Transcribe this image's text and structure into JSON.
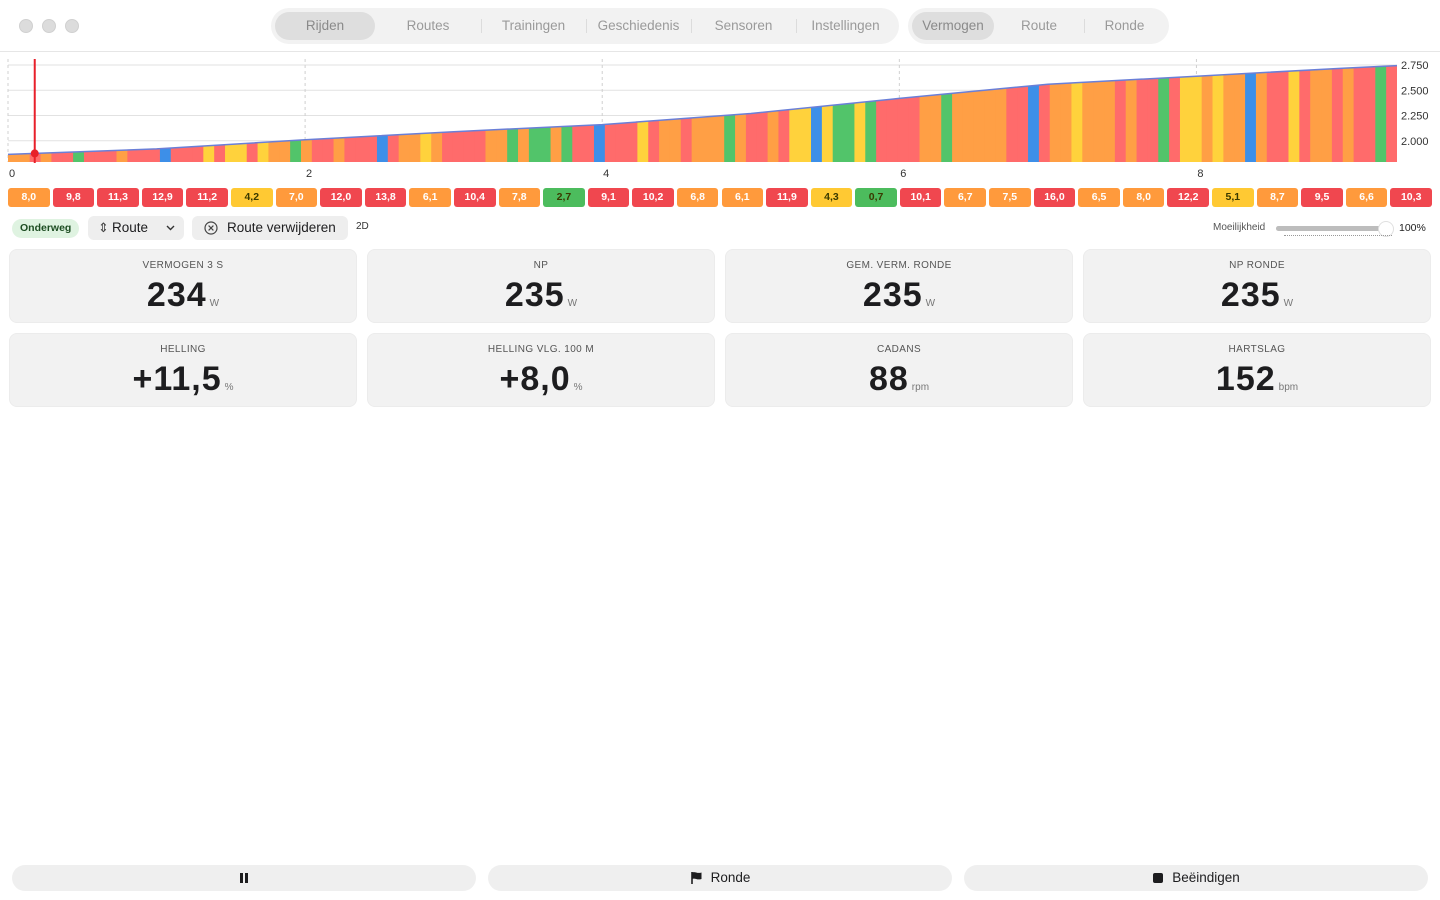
{
  "tabs_main": [
    {
      "label": "Rijden",
      "selected": true
    },
    {
      "label": "Routes",
      "selected": false
    },
    {
      "label": "Trainingen",
      "selected": false
    },
    {
      "label": "Geschiedenis",
      "selected": false
    },
    {
      "label": "Sensoren",
      "selected": false
    },
    {
      "label": "Instellingen",
      "selected": false
    }
  ],
  "tabs_view": [
    {
      "label": "Vermogen",
      "selected": true
    },
    {
      "label": "Route",
      "selected": false
    },
    {
      "label": "Ronde",
      "selected": false
    }
  ],
  "chart_data": {
    "type": "area",
    "x_ticks": [
      "0",
      "2",
      "4",
      "6",
      "8"
    ],
    "y_ticks": [
      "2.000",
      "2.250",
      "2.500",
      "2.750"
    ],
    "ylim": [
      1790,
      2810
    ],
    "xlim": [
      0,
      9.35
    ],
    "current_position_x": 0.18,
    "elevation_x": [
      0,
      1,
      2,
      3,
      4,
      5,
      6,
      7,
      8,
      9,
      9.35
    ],
    "elevation_y": [
      1865,
      1920,
      2010,
      2090,
      2160,
      2270,
      2420,
      2560,
      2640,
      2720,
      2745
    ],
    "zone_colors": {
      "red": "#ff6b6b",
      "orange": "#ff9f45",
      "yellow": "#ffd23c",
      "green": "#52c46a",
      "blue": "#3d8fe8"
    }
  },
  "slope_chips": [
    {
      "label": "8,0",
      "color": "#ff9a3c"
    },
    {
      "label": "9,8",
      "color": "#f0474f"
    },
    {
      "label": "11,3",
      "color": "#f0474f"
    },
    {
      "label": "12,9",
      "color": "#f0474f"
    },
    {
      "label": "11,2",
      "color": "#f0474f"
    },
    {
      "label": "4,2",
      "color": "#ffc933"
    },
    {
      "label": "7,0",
      "color": "#ff9a3c"
    },
    {
      "label": "12,0",
      "color": "#f0474f"
    },
    {
      "label": "13,8",
      "color": "#f0474f"
    },
    {
      "label": "6,1",
      "color": "#ff9a3c"
    },
    {
      "label": "10,4",
      "color": "#f0474f"
    },
    {
      "label": "7,8",
      "color": "#ff9a3c"
    },
    {
      "label": "2,7",
      "color": "#4cbc5d"
    },
    {
      "label": "9,1",
      "color": "#f0474f"
    },
    {
      "label": "10,2",
      "color": "#f0474f"
    },
    {
      "label": "6,8",
      "color": "#ff9a3c"
    },
    {
      "label": "6,1",
      "color": "#ff9a3c"
    },
    {
      "label": "11,9",
      "color": "#f0474f"
    },
    {
      "label": "4,3",
      "color": "#ffc933"
    },
    {
      "label": "0,7",
      "color": "#4cbc5d"
    },
    {
      "label": "10,1",
      "color": "#f0474f"
    },
    {
      "label": "6,7",
      "color": "#ff9a3c"
    },
    {
      "label": "7,5",
      "color": "#ff9a3c"
    },
    {
      "label": "16,0",
      "color": "#f0474f"
    },
    {
      "label": "6,5",
      "color": "#ff9a3c"
    },
    {
      "label": "8,0",
      "color": "#ff9a3c"
    },
    {
      "label": "12,2",
      "color": "#f0474f"
    },
    {
      "label": "5,1",
      "color": "#ffc933"
    },
    {
      "label": "8,7",
      "color": "#ff9a3c"
    },
    {
      "label": "9,5",
      "color": "#f0474f"
    },
    {
      "label": "6,6",
      "color": "#ff9a3c"
    },
    {
      "label": "10,3",
      "color": "#f0474f"
    }
  ],
  "toolbar": {
    "status_badge": "Onderweg",
    "route_selector": "Route",
    "remove_route": "Route verwijderen",
    "mode_2d": "2D",
    "difficulty_label": "Moeilijkheid",
    "difficulty_value": "100%",
    "difficulty_fraction": 1.0
  },
  "metrics": [
    {
      "label": "VERMOGEN 3 S",
      "value": "234",
      "unit": "W"
    },
    {
      "label": "NP",
      "value": "235",
      "unit": "W"
    },
    {
      "label": "GEM. VERM. RONDE",
      "value": "235",
      "unit": "W"
    },
    {
      "label": "NP RONDE",
      "value": "235",
      "unit": "W"
    },
    {
      "label": "HELLING",
      "value": "+11,5",
      "unit": "%"
    },
    {
      "label": "HELLING VLG. 100 M",
      "value": "+8,0",
      "unit": "%"
    },
    {
      "label": "CADANS",
      "value": "88",
      "unit": "rpm"
    },
    {
      "label": "HARTSLAG",
      "value": "152",
      "unit": "bpm"
    }
  ],
  "bottom": {
    "pause_icon": "pause-icon",
    "lap_label": "Ronde",
    "lap_icon": "flag-icon",
    "end_label": "Beëindigen",
    "end_icon": "stop-icon"
  }
}
